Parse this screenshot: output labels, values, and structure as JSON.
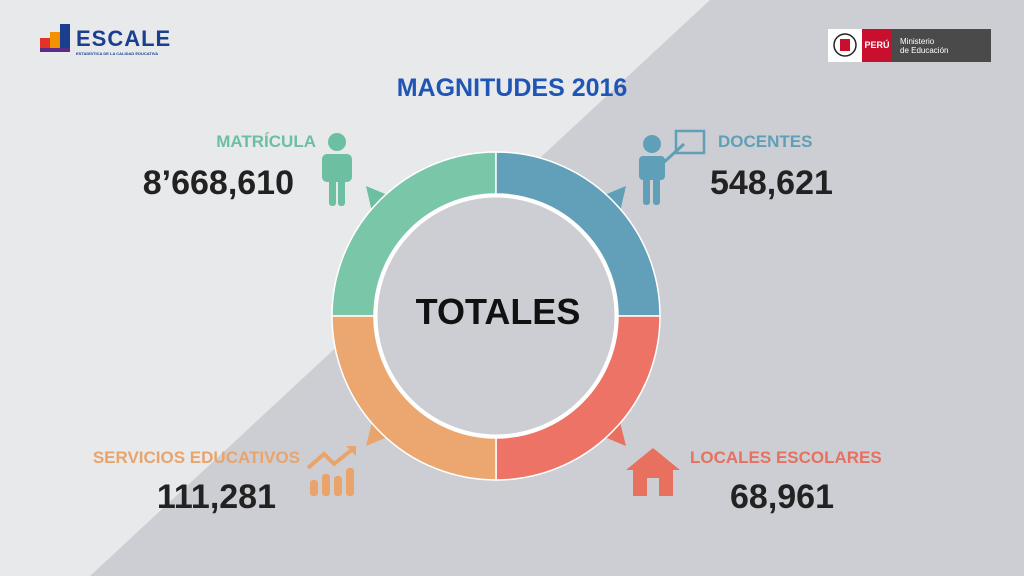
{
  "header": {
    "logo_text": "ESCALE",
    "logo_subtitle": "ESTADÍSTICA DE LA CALIDAD EDUCATIVA",
    "ministry_country": "PERÚ",
    "ministry_line1": "Ministerio",
    "ministry_line2": "de Educación"
  },
  "title": "MAGNITUDES 2016",
  "center_label": "TOTALES",
  "stats": {
    "matricula": {
      "label": "MATRÍCULA",
      "value": "8’668,610",
      "color": "#6cbfa0",
      "icon": "person-icon"
    },
    "docentes": {
      "label": "DOCENTES",
      "value": "548,621",
      "color": "#5f9fb8",
      "icon": "teacher-icon"
    },
    "servicios": {
      "label": "SERVICIOS EDUCATIVOS",
      "value": "111,281",
      "color": "#e9a46c",
      "icon": "growth-chart-icon"
    },
    "locales": {
      "label": "LOCALES ESCOLARES",
      "value": "68,961",
      "color": "#e8705f",
      "icon": "house-icon"
    }
  },
  "colors": {
    "background_light": "#e8e9eb",
    "background_dark": "#cdced3",
    "title": "#1f56b5"
  }
}
